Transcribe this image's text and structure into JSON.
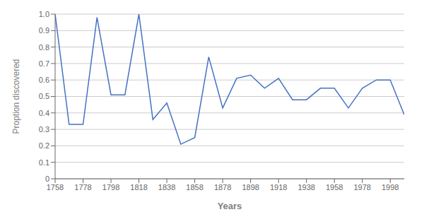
{
  "chart_data": {
    "type": "line",
    "x": [
      1758,
      1768,
      1778,
      1788,
      1798,
      1808,
      1818,
      1828,
      1838,
      1848,
      1858,
      1868,
      1878,
      1888,
      1898,
      1908,
      1918,
      1928,
      1938,
      1948,
      1958,
      1968,
      1978,
      1988,
      1998,
      2008
    ],
    "values": [
      1.0,
      0.33,
      0.33,
      0.98,
      0.51,
      0.51,
      1.0,
      0.36,
      0.46,
      0.21,
      0.25,
      0.74,
      0.43,
      0.61,
      0.63,
      0.55,
      0.61,
      0.48,
      0.48,
      0.55,
      0.55,
      0.43,
      0.55,
      0.6,
      0.6,
      0.39
    ],
    "xlabel": "Years",
    "ylabel": "Proption discovered",
    "xlim": [
      1758,
      2008
    ],
    "ylim": [
      0,
      1.0
    ],
    "xticks": [
      1758,
      1778,
      1798,
      1818,
      1838,
      1858,
      1878,
      1898,
      1918,
      1938,
      1958,
      1978,
      1998
    ],
    "yticks": [
      0,
      0.1,
      0.2,
      0.3,
      0.4,
      0.5,
      0.6,
      0.7,
      0.8,
      0.9,
      {
        "value": 1.0,
        "label": "1.0"
      }
    ],
    "color": "#4472c4",
    "grid": true
  }
}
